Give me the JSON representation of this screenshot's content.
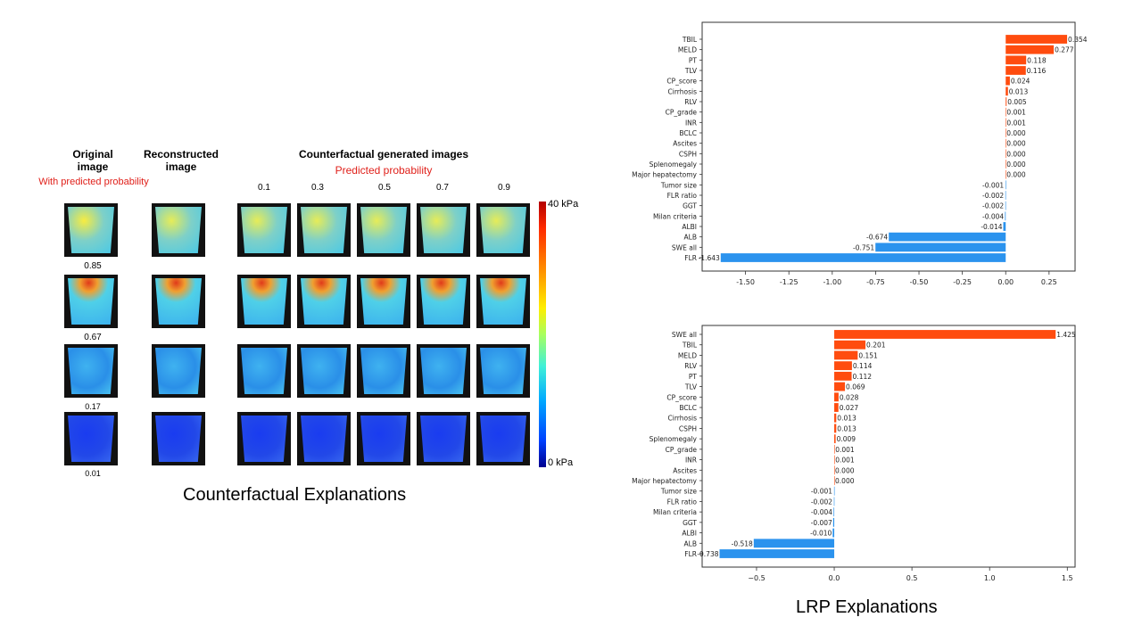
{
  "counterfactual": {
    "header_original": "Original image",
    "header_original_sub": "With predicted probability",
    "header_reconstructed": "Reconstructed image",
    "header_counterfactual": "Counterfactual generated images",
    "header_counterfactual_sub": "Predicted probability",
    "target_probabilities": [
      "0.1",
      "0.3",
      "0.5",
      "0.7",
      "0.9"
    ],
    "row_probabilities": [
      "0.85",
      "0.67",
      "0.17",
      "0.01"
    ],
    "colorbar_max": "40 kPa",
    "colorbar_min": "0 kPa",
    "caption": "Counterfactual Explanations"
  },
  "lrp_caption": "LRP Explanations",
  "chart_data": [
    {
      "type": "bar",
      "orientation": "horizontal",
      "categories": [
        "TBIL",
        "MELD",
        "PT",
        "TLV",
        "CP_score",
        "Cirrhosis",
        "RLV",
        "CP_grade",
        "INR",
        "BCLC",
        "Ascites",
        "CSPH",
        "Splenomegaly",
        "Major hepatectomy",
        "Tumor size",
        "FLR ratio",
        "GGT",
        "Milan criteria",
        "ALBI",
        "ALB",
        "SWE all",
        "FLR"
      ],
      "values": [
        0.354,
        0.277,
        0.118,
        0.116,
        0.024,
        0.013,
        0.005,
        0.001,
        0.001,
        0.0,
        0.0,
        0.0,
        0.0,
        0.0,
        -0.001,
        -0.002,
        -0.002,
        -0.004,
        -0.014,
        -0.674,
        -0.751,
        -1.643
      ],
      "labels": [
        "0.354",
        "0.277",
        "0.118",
        "0.116",
        "0.024",
        "0.013",
        "0.005",
        "0.001",
        "0.001",
        "0.000",
        "0.000",
        "0.000",
        "0.000",
        "0.000",
        "-0.001",
        "-0.002",
        "-0.002",
        "-0.004",
        "-0.014",
        "-0.674",
        "-0.751",
        "-1.643"
      ],
      "xlim": [
        -1.75,
        0.4
      ],
      "xticks": [
        "-1.50",
        "-1.25",
        "-1.00",
        "-0.75",
        "-0.50",
        "-0.25",
        "0.00",
        "0.25"
      ],
      "xtick_values": [
        -1.5,
        -1.25,
        -1.0,
        -0.75,
        -0.5,
        -0.25,
        0.0,
        0.25
      ],
      "positive_color": "#ff4c0f",
      "negative_color": "#2b93ee"
    },
    {
      "type": "bar",
      "orientation": "horizontal",
      "categories": [
        "SWE all",
        "TBIL",
        "MELD",
        "RLV",
        "PT",
        "TLV",
        "CP_score",
        "BCLC",
        "Cirrhosis",
        "CSPH",
        "Splenomegaly",
        "CP_grade",
        "INR",
        "Ascites",
        "Major hepatectomy",
        "Tumor size",
        "FLR ratio",
        "Milan criteria",
        "GGT",
        "ALBI",
        "ALB",
        "FLR"
      ],
      "values": [
        1.425,
        0.201,
        0.151,
        0.114,
        0.112,
        0.069,
        0.028,
        0.027,
        0.013,
        0.013,
        0.009,
        0.001,
        0.001,
        0.0,
        0.0,
        -0.001,
        -0.002,
        -0.004,
        -0.007,
        -0.01,
        -0.518,
        -0.738
      ],
      "labels": [
        "1.425",
        "0.201",
        "0.151",
        "0.114",
        "0.112",
        "0.069",
        "0.028",
        "0.027",
        "0.013",
        "0.013",
        "0.009",
        "0.001",
        "0.001",
        "0.000",
        "0.000",
        "-0.001",
        "-0.002",
        "-0.004",
        "-0.007",
        "-0.010",
        "-0.518",
        "-0.738"
      ],
      "xlim": [
        -0.85,
        1.55
      ],
      "xticks": [
        "−0.5",
        "0.0",
        "0.5",
        "1.0",
        "1.5"
      ],
      "xtick_values": [
        -0.5,
        0.0,
        0.5,
        1.0,
        1.5
      ],
      "positive_color": "#ff4c0f",
      "negative_color": "#2b93ee"
    }
  ]
}
